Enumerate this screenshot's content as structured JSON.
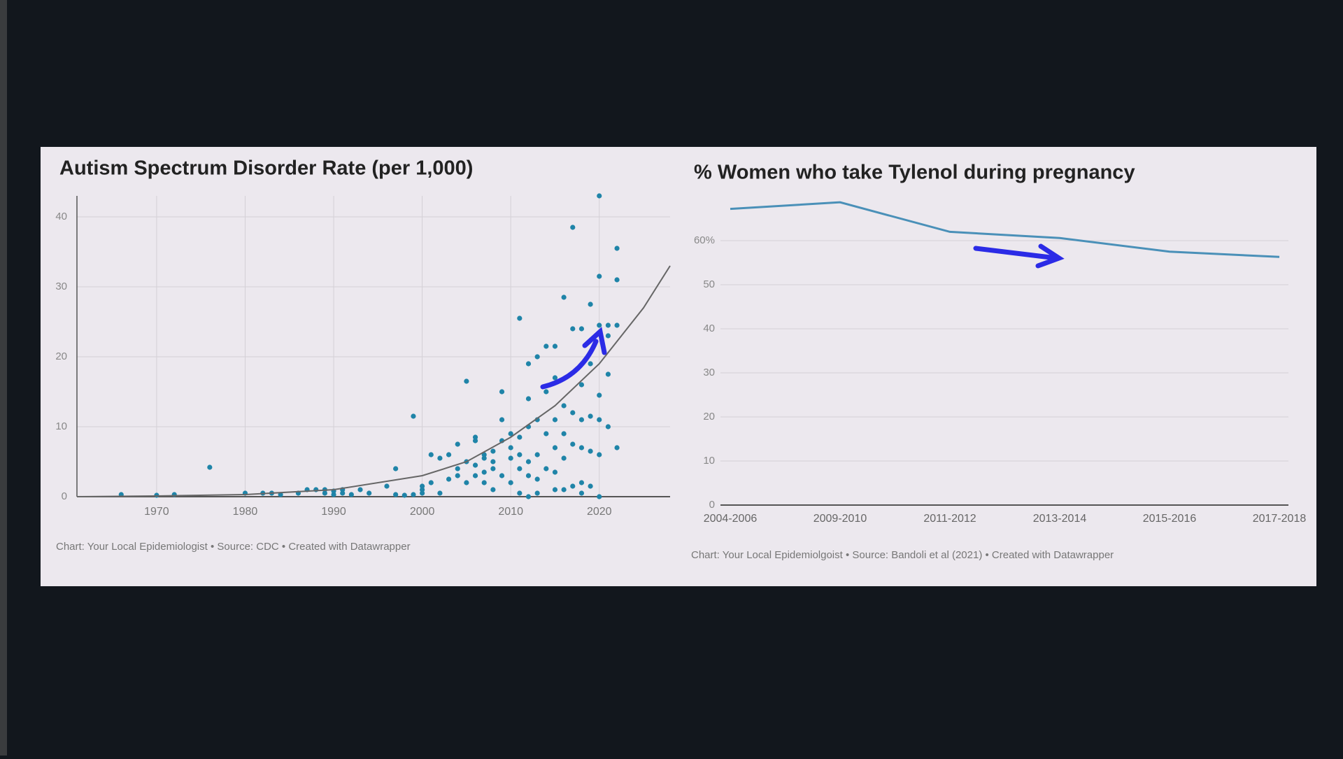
{
  "chart_data": [
    {
      "type": "scatter",
      "title": "Autism Spectrum Disorder Rate (per 1,000)",
      "footer": "Chart: Your Local Epidemiologist • Source: CDC • Created with Datawrapper",
      "color": "#1f84a8",
      "grid": true,
      "xlim": [
        1961,
        2028
      ],
      "xticks": [
        1970,
        1980,
        1990,
        2000,
        2010,
        2020
      ],
      "ylim": [
        0,
        43
      ],
      "yticks": [
        0,
        10,
        20,
        30,
        40
      ],
      "x": [
        1966,
        1970,
        1972,
        1976,
        1980,
        1982,
        1983,
        1984,
        1986,
        1987,
        1988,
        1989,
        1989,
        1990,
        1990,
        1991,
        1991,
        1992,
        1993,
        1994,
        1996,
        1997,
        1997,
        1998,
        1999,
        1999,
        2000,
        2000,
        2000,
        2001,
        2001,
        2002,
        2002,
        2003,
        2003,
        2004,
        2004,
        2004,
        2005,
        2005,
        2005,
        2006,
        2006,
        2006,
        2006,
        2007,
        2007,
        2007,
        2007,
        2008,
        2008,
        2008,
        2008,
        2009,
        2009,
        2009,
        2009,
        2010,
        2010,
        2010,
        2010,
        2011,
        2011,
        2011,
        2011,
        2011,
        2012,
        2012,
        2012,
        2012,
        2012,
        2012,
        2013,
        2013,
        2013,
        2013,
        2013,
        2014,
        2014,
        2014,
        2014,
        2015,
        2015,
        2015,
        2015,
        2015,
        2015,
        2016,
        2016,
        2016,
        2016,
        2016,
        2017,
        2017,
        2017,
        2017,
        2017,
        2018,
        2018,
        2018,
        2018,
        2018,
        2018,
        2019,
        2019,
        2019,
        2019,
        2019,
        2020,
        2020,
        2020,
        2020,
        2020,
        2020,
        2020,
        2021,
        2021,
        2021,
        2021,
        2022,
        2022,
        2022,
        2022
      ],
      "values": [
        0.3,
        0.2,
        0.3,
        4.2,
        0.5,
        0.5,
        0.5,
        0.3,
        0.5,
        1,
        1,
        0.5,
        1,
        0.3,
        0.8,
        0.5,
        1,
        0.3,
        1,
        0.5,
        1.5,
        0.3,
        4,
        0.2,
        0.3,
        11.5,
        0.5,
        1,
        1.5,
        2,
        6,
        0.5,
        5.5,
        2.5,
        6,
        3,
        4,
        7.5,
        2,
        5,
        16.5,
        3,
        4.5,
        8,
        8.5,
        2,
        3.5,
        5.5,
        6,
        1,
        4,
        5,
        6.5,
        3,
        8,
        11,
        15,
        2,
        5.5,
        7,
        9,
        0.5,
        4,
        6,
        8.5,
        25.5,
        0,
        3,
        5,
        10,
        14,
        19,
        0.5,
        2.5,
        6,
        11,
        20,
        4,
        9,
        15,
        21.5,
        1,
        3.5,
        7,
        11,
        17,
        21.5,
        1,
        5.5,
        9,
        13,
        28.5,
        1.5,
        7.5,
        12,
        24,
        38.5,
        0.5,
        2,
        7,
        11,
        16,
        24,
        1.5,
        6.5,
        11.5,
        19,
        27.5,
        0,
        6,
        11,
        14.5,
        24.5,
        31.5,
        43,
        10,
        17.5,
        23,
        24.5,
        7,
        24.5,
        31,
        35.5
      ],
      "trend": {
        "x": [
          1961,
          1970,
          1980,
          1990,
          2000,
          2005,
          2010,
          2015,
          2020,
          2025,
          2028
        ],
        "y": [
          0,
          0.1,
          0.3,
          1,
          3,
          5,
          8.5,
          13,
          19,
          27,
          33
        ]
      }
    },
    {
      "type": "line",
      "title": "% Women who take Tylenol during pregnancy",
      "footer": "Chart: Your Local Epidemiolgoist • Source: Bandoli et al (2021) • Created with Datawrapper",
      "color": "#4a90b8",
      "grid": true,
      "categories": [
        "2004-2006",
        "2009-2010",
        "2011-2012",
        "2013-2014",
        "2015-2016",
        "2017-2018"
      ],
      "values": [
        67.2,
        68.7,
        62,
        60.6,
        57.5,
        56.3
      ],
      "ylim": [
        0,
        70
      ],
      "yticks": [
        0,
        10,
        20,
        30,
        40,
        50,
        {
          "value": 60,
          "label": "60%"
        }
      ]
    }
  ]
}
